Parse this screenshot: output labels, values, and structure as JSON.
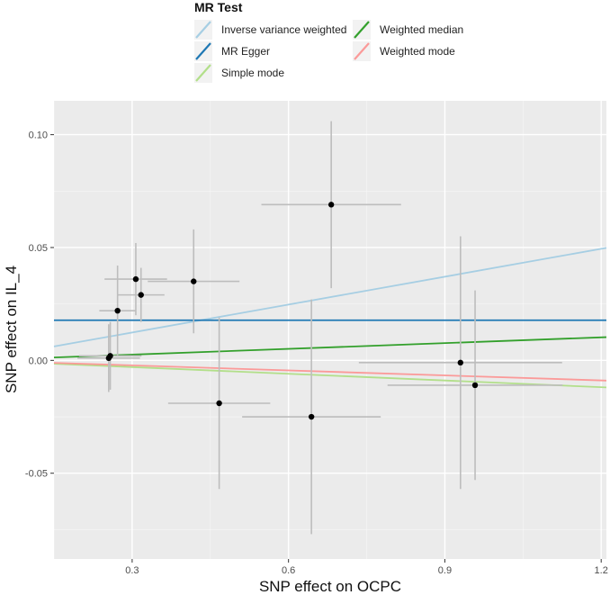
{
  "chart_data": {
    "type": "scatter",
    "xlabel": "SNP effect on OCPC",
    "ylabel": "SNP effect on IL_4",
    "xlim": [
      0.15,
      1.21
    ],
    "ylim": [
      -0.088,
      0.115
    ],
    "x_ticks": [
      0.3,
      0.6,
      0.9,
      1.2
    ],
    "x_tick_labels": [
      "0.3",
      "0.6",
      "0.9",
      "1.2"
    ],
    "y_ticks": [
      -0.05,
      0.0,
      0.05,
      0.1
    ],
    "y_tick_labels": [
      "-0.05",
      "0.00",
      "0.05",
      "0.10"
    ],
    "grid": true,
    "legend": {
      "title": "MR Test",
      "position": "top",
      "entries": [
        {
          "name": "Inverse variance weighted",
          "color": "#a6cee3"
        },
        {
          "name": "MR Egger",
          "color": "#1f78b4"
        },
        {
          "name": "Simple mode",
          "color": "#b2df8a"
        },
        {
          "name": "Weighted median",
          "color": "#33a02c"
        },
        {
          "name": "Weighted mode",
          "color": "#fb9a99"
        }
      ]
    },
    "points": [
      {
        "x": 0.255,
        "y": 0.001,
        "xerr": 0.06,
        "yerr": 0.015
      },
      {
        "x": 0.258,
        "y": 0.002,
        "xerr": 0.06,
        "yerr": 0.015
      },
      {
        "x": 0.272,
        "y": 0.022,
        "xerr": 0.035,
        "yerr": 0.02
      },
      {
        "x": 0.307,
        "y": 0.036,
        "xerr": 0.06,
        "yerr": 0.016
      },
      {
        "x": 0.317,
        "y": 0.029,
        "xerr": 0.045,
        "yerr": 0.012
      },
      {
        "x": 0.418,
        "y": 0.035,
        "xerr": 0.088,
        "yerr": 0.023
      },
      {
        "x": 0.467,
        "y": -0.019,
        "xerr": 0.098,
        "yerr": 0.038
      },
      {
        "x": 0.644,
        "y": -0.025,
        "xerr": 0.133,
        "yerr": 0.052
      },
      {
        "x": 0.682,
        "y": 0.069,
        "xerr": 0.134,
        "yerr": 0.037
      },
      {
        "x": 0.93,
        "y": -0.001,
        "xerr": 0.195,
        "yerr": 0.056
      },
      {
        "x": 0.958,
        "y": -0.011,
        "xerr": 0.168,
        "yerr": 0.042
      }
    ],
    "lines": [
      {
        "name": "Inverse variance weighted",
        "color": "#a6cee3",
        "intercept": 0.0,
        "slope": 0.0412
      },
      {
        "name": "MR Egger",
        "color": "#1f78b4",
        "intercept": 0.0178,
        "slope": 0.0
      },
      {
        "name": "Simple mode",
        "color": "#b2df8a",
        "intercept": 0.0,
        "slope": -0.0099
      },
      {
        "name": "Weighted median",
        "color": "#33a02c",
        "intercept": 0.0,
        "slope": 0.0085
      },
      {
        "name": "Weighted mode",
        "color": "#fb9a99",
        "intercept": 0.0,
        "slope": -0.0074
      }
    ],
    "colors": {
      "panel_background": "#ebebeb",
      "grid_major": "#ffffff",
      "errorbar": "#bdbdbd",
      "point": "#000000"
    }
  }
}
